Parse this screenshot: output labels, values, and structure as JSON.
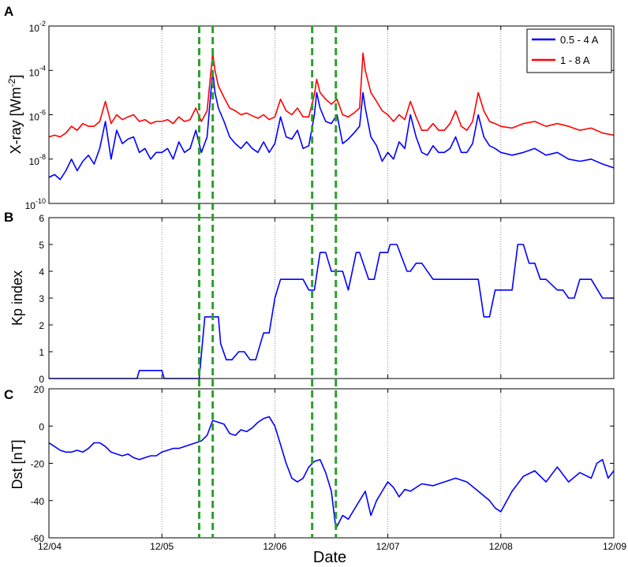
{
  "figure": {
    "xlabel": "Date"
  },
  "x_ticks": [
    "12/04",
    "12/05",
    "12/06",
    "12/07",
    "12/08",
    "12/09"
  ],
  "event_lines_day": [
    1.33,
    1.45,
    2.33,
    2.54
  ],
  "colors": {
    "series1": "#0000ff",
    "series2": "#ff0000",
    "events": "#2ca02c"
  },
  "chart_data": [
    {
      "panel": "A",
      "type": "line",
      "ylabel": "X-ray [Wm-2]",
      "yscale": "log",
      "ylim": [
        1e-10,
        0.01
      ],
      "xlim": [
        0,
        5
      ],
      "y_ticks": [
        {
          "base": "10",
          "exp": "-2",
          "value": 0.01
        },
        {
          "base": "10",
          "exp": "-4",
          "value": 0.0001
        },
        {
          "base": "10",
          "exp": "-6",
          "value": 1e-06
        },
        {
          "base": "10",
          "exp": "-8",
          "value": 1e-08
        },
        {
          "base": "10",
          "exp": "-10",
          "value": 1e-10
        }
      ],
      "legend_position": "top-right",
      "series": [
        {
          "name": "0.5 - 4 A",
          "color": "#0000ff",
          "x": [
            0,
            0.05,
            0.1,
            0.15,
            0.2,
            0.25,
            0.3,
            0.35,
            0.4,
            0.45,
            0.5,
            0.55,
            0.6,
            0.65,
            0.7,
            0.75,
            0.8,
            0.85,
            0.9,
            0.95,
            1.0,
            1.05,
            1.1,
            1.15,
            1.2,
            1.25,
            1.3,
            1.35,
            1.4,
            1.45,
            1.47,
            1.5,
            1.55,
            1.6,
            1.65,
            1.7,
            1.75,
            1.8,
            1.85,
            1.9,
            1.95,
            2.0,
            2.05,
            2.1,
            2.15,
            2.2,
            2.25,
            2.3,
            2.35,
            2.37,
            2.4,
            2.45,
            2.5,
            2.55,
            2.6,
            2.65,
            2.7,
            2.75,
            2.78,
            2.8,
            2.85,
            2.9,
            2.95,
            3.0,
            3.05,
            3.1,
            3.15,
            3.2,
            3.25,
            3.3,
            3.35,
            3.4,
            3.45,
            3.5,
            3.55,
            3.6,
            3.65,
            3.7,
            3.75,
            3.8,
            3.85,
            3.9,
            3.95,
            4.0,
            4.1,
            4.2,
            4.3,
            4.4,
            4.5,
            4.6,
            4.7,
            4.8,
            4.9,
            5.0
          ],
          "y": [
            1.5e-09,
            2e-09,
            1.2e-09,
            3e-09,
            1e-08,
            3e-09,
            8e-09,
            1.5e-08,
            6e-09,
            3e-08,
            5e-07,
            1e-08,
            2e-07,
            5e-08,
            8e-08,
            1e-07,
            2e-08,
            3e-08,
            1e-08,
            2e-08,
            2e-08,
            3e-08,
            1e-08,
            6e-08,
            2e-08,
            3e-08,
            2e-07,
            2e-08,
            1e-07,
            0.0001,
            1e-05,
            2e-06,
            5e-07,
            1e-07,
            5e-08,
            3e-08,
            6e-08,
            3e-08,
            2e-08,
            6e-08,
            2e-08,
            5e-08,
            8e-07,
            1e-07,
            8e-08,
            2e-07,
            3e-08,
            4e-08,
            1e-06,
            1e-05,
            2e-06,
            5e-07,
            4e-07,
            1e-06,
            5e-08,
            8e-08,
            1.5e-07,
            3e-07,
            1e-05,
            2e-06,
            1e-07,
            4e-08,
            8e-09,
            2e-08,
            1e-08,
            6e-08,
            3e-08,
            1e-06,
            1e-07,
            2e-08,
            1.5e-08,
            4e-08,
            2e-08,
            2e-08,
            3e-08,
            1e-07,
            2e-08,
            2e-08,
            5e-08,
            1e-06,
            1e-07,
            4e-08,
            3e-08,
            2e-08,
            1.5e-08,
            2e-08,
            3e-08,
            1.5e-08,
            2e-08,
            1e-08,
            8e-09,
            1e-08,
            6e-09,
            4e-09
          ]
        },
        {
          "name": "1 - 8 A",
          "color": "#ff0000",
          "x": [
            0,
            0.05,
            0.1,
            0.15,
            0.2,
            0.25,
            0.3,
            0.35,
            0.4,
            0.45,
            0.5,
            0.55,
            0.6,
            0.65,
            0.7,
            0.75,
            0.8,
            0.85,
            0.9,
            0.95,
            1.0,
            1.05,
            1.1,
            1.15,
            1.2,
            1.25,
            1.3,
            1.35,
            1.4,
            1.45,
            1.47,
            1.5,
            1.55,
            1.6,
            1.65,
            1.7,
            1.75,
            1.8,
            1.85,
            1.9,
            1.95,
            2.0,
            2.05,
            2.1,
            2.15,
            2.2,
            2.25,
            2.3,
            2.35,
            2.37,
            2.4,
            2.45,
            2.5,
            2.55,
            2.6,
            2.65,
            2.7,
            2.75,
            2.78,
            2.8,
            2.85,
            2.9,
            2.95,
            3.0,
            3.05,
            3.1,
            3.15,
            3.2,
            3.25,
            3.3,
            3.35,
            3.4,
            3.45,
            3.5,
            3.55,
            3.6,
            3.65,
            3.7,
            3.75,
            3.8,
            3.85,
            3.9,
            3.95,
            4.0,
            4.1,
            4.2,
            4.3,
            4.4,
            4.5,
            4.6,
            4.7,
            4.8,
            4.9,
            5.0
          ],
          "y": [
            1e-07,
            1.2e-07,
            1e-07,
            1.5e-07,
            3e-07,
            2e-07,
            4e-07,
            3e-07,
            3e-07,
            5e-07,
            4e-06,
            4e-07,
            1e-06,
            6e-07,
            8e-07,
            1e-06,
            5e-07,
            6e-07,
            4e-07,
            5e-07,
            5e-07,
            6e-07,
            4e-07,
            8e-07,
            5e-07,
            6e-07,
            2e-06,
            5e-07,
            1.5e-06,
            0.0006,
            0.0001,
            2e-05,
            6e-06,
            2e-06,
            1.5e-06,
            1e-06,
            1.2e-06,
            9e-07,
            7e-07,
            1e-06,
            6e-07,
            8e-07,
            5e-06,
            1.5e-06,
            1e-06,
            2e-06,
            8e-07,
            8e-07,
            8e-06,
            4e-05,
            1e-05,
            5e-06,
            3e-06,
            5e-06,
            1e-06,
            8e-07,
            1.2e-06,
            2e-06,
            0.0006,
            0.0001,
            1e-05,
            4e-06,
            1.5e-06,
            1e-06,
            5e-07,
            1e-06,
            6e-07,
            4e-06,
            8e-07,
            2e-07,
            2e-07,
            4e-07,
            2e-07,
            2e-07,
            4e-07,
            1.5e-06,
            3e-07,
            2e-07,
            5e-07,
            1e-05,
            1.5e-06,
            5e-07,
            4e-07,
            3e-07,
            2.5e-07,
            4e-07,
            5e-07,
            3e-07,
            4e-07,
            3e-07,
            2e-07,
            2.5e-07,
            1.5e-07,
            1.2e-07
          ]
        }
      ]
    },
    {
      "panel": "B",
      "type": "line",
      "ylabel": "Kp index",
      "ylim": [
        0,
        6
      ],
      "xlim": [
        0,
        5
      ],
      "y_ticks": [
        "0",
        "1",
        "2",
        "3",
        "4",
        "5",
        "6"
      ],
      "series": [
        {
          "name": "",
          "color": "#0000ff",
          "x": [
            0,
            0.78,
            0.8,
            1.0,
            1.02,
            1.33,
            1.38,
            1.43,
            1.5,
            1.52,
            1.57,
            1.62,
            1.68,
            1.73,
            1.78,
            1.83,
            1.9,
            1.95,
            2.0,
            2.05,
            2.1,
            2.13,
            2.17,
            2.25,
            2.3,
            2.35,
            2.4,
            2.45,
            2.5,
            2.53,
            2.6,
            2.65,
            2.72,
            2.75,
            2.83,
            2.88,
            2.93,
            3.0,
            3.02,
            3.08,
            3.17,
            3.2,
            3.25,
            3.3,
            3.4,
            3.45,
            3.5,
            3.55,
            3.6,
            3.7,
            3.8,
            3.85,
            3.9,
            3.95,
            4.0,
            4.1,
            4.15,
            4.2,
            4.25,
            4.3,
            4.35,
            4.4,
            4.5,
            4.55,
            4.6,
            4.65,
            4.7,
            4.75,
            4.8,
            4.9,
            4.95,
            5.0
          ],
          "y": [
            0,
            0,
            0.3,
            0.3,
            0,
            0,
            2.3,
            2.3,
            2.3,
            1.3,
            0.7,
            0.7,
            1,
            1,
            0.7,
            0.7,
            1.7,
            1.7,
            3,
            3.7,
            3.7,
            3.7,
            3.7,
            3.7,
            3.3,
            3.3,
            4.7,
            4.7,
            4,
            4,
            4,
            3.3,
            4.7,
            4.7,
            3.7,
            3.7,
            4.7,
            4.7,
            5,
            5,
            4,
            4,
            4.3,
            4.3,
            3.7,
            3.7,
            3.7,
            3.7,
            3.7,
            3.7,
            3.7,
            2.3,
            2.3,
            3.3,
            3.3,
            3.3,
            5,
            5,
            4.3,
            4.3,
            3.7,
            3.7,
            3.3,
            3.3,
            3,
            3,
            3.7,
            3.7,
            3.7,
            3,
            3,
            3
          ]
        }
      ]
    },
    {
      "panel": "C",
      "type": "line",
      "ylabel": "Dst [nT]",
      "ylim": [
        -60,
        20
      ],
      "xlim": [
        0,
        5
      ],
      "y_ticks": [
        "20",
        "0",
        "-20",
        "-40",
        "-60"
      ],
      "series": [
        {
          "name": "",
          "color": "#0000ff",
          "x": [
            0,
            0.05,
            0.1,
            0.15,
            0.2,
            0.25,
            0.3,
            0.35,
            0.4,
            0.45,
            0.5,
            0.55,
            0.6,
            0.65,
            0.7,
            0.75,
            0.8,
            0.85,
            0.9,
            0.95,
            1.0,
            1.05,
            1.1,
            1.15,
            1.2,
            1.25,
            1.3,
            1.35,
            1.4,
            1.45,
            1.5,
            1.55,
            1.6,
            1.65,
            1.7,
            1.75,
            1.8,
            1.85,
            1.9,
            1.95,
            2.0,
            2.05,
            2.1,
            2.15,
            2.2,
            2.25,
            2.3,
            2.35,
            2.4,
            2.45,
            2.5,
            2.54,
            2.6,
            2.65,
            2.7,
            2.75,
            2.8,
            2.85,
            2.9,
            2.95,
            3.0,
            3.05,
            3.1,
            3.15,
            3.2,
            3.3,
            3.4,
            3.5,
            3.6,
            3.7,
            3.8,
            3.9,
            3.95,
            4.0,
            4.1,
            4.2,
            4.3,
            4.4,
            4.5,
            4.6,
            4.7,
            4.8,
            4.85,
            4.9,
            4.95,
            5.0
          ],
          "y": [
            -9,
            -11,
            -13,
            -14,
            -14,
            -13,
            -14,
            -12,
            -9,
            -9,
            -11,
            -14,
            -15,
            -16,
            -15,
            -17,
            -18,
            -17,
            -16,
            -16,
            -14,
            -13,
            -12,
            -12,
            -11,
            -10,
            -9,
            -8,
            -5,
            3,
            2,
            1,
            -4,
            -5,
            -2,
            -3,
            -1,
            2,
            4,
            5,
            0,
            -10,
            -20,
            -28,
            -30,
            -28,
            -22,
            -19,
            -18,
            -25,
            -35,
            -55,
            -48,
            -50,
            -45,
            -40,
            -35,
            -48,
            -40,
            -35,
            -30,
            -33,
            -38,
            -34,
            -35,
            -31,
            -32,
            -30,
            -28,
            -30,
            -35,
            -40,
            -44,
            -46,
            -35,
            -27,
            -24,
            -30,
            -22,
            -30,
            -25,
            -28,
            -20,
            -18,
            -28,
            -24
          ]
        }
      ]
    }
  ]
}
